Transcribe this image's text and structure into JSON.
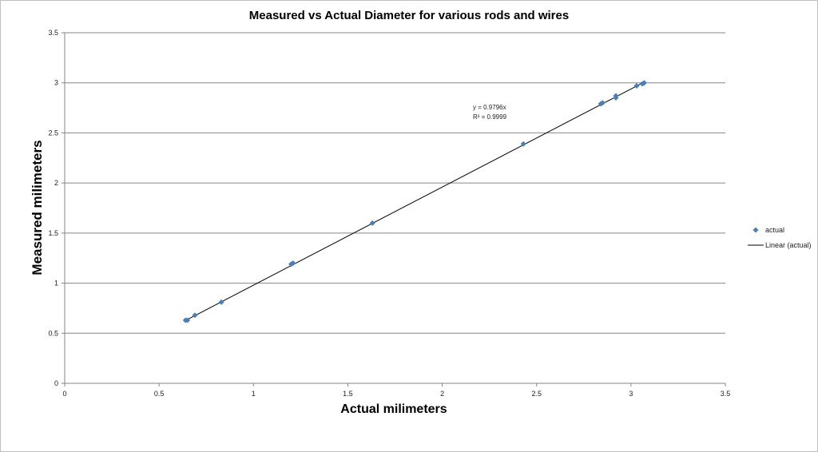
{
  "chart_data": {
    "type": "scatter",
    "title": "Measured vs Actual Diameter for various rods and wires",
    "xlabel": "Actual milimeters",
    "ylabel": "Measured milimeters",
    "xlim": [
      0,
      3.5
    ],
    "ylim": [
      0,
      3.5
    ],
    "xticks": [
      "0",
      "0.5",
      "1",
      "1.5",
      "2",
      "2.5",
      "3",
      "3.5"
    ],
    "yticks": [
      "0",
      "0.5",
      "1",
      "1.5",
      "2",
      "2.5",
      "3",
      "3.5"
    ],
    "grid": "horizontal",
    "legend_position": "right",
    "series": [
      {
        "name": "actual",
        "marker": "diamond",
        "color": "#4a7ebb",
        "x": [
          0.64,
          0.65,
          0.69,
          0.83,
          1.2,
          1.21,
          1.63,
          2.43,
          2.84,
          2.85,
          2.92,
          2.92,
          3.03,
          3.06,
          3.07
        ],
        "y": [
          0.63,
          0.63,
          0.68,
          0.81,
          1.19,
          1.2,
          1.6,
          2.39,
          2.79,
          2.8,
          2.85,
          2.87,
          2.97,
          2.99,
          3.0
        ]
      }
    ],
    "trendline": {
      "name": "Linear (actual)",
      "slope": 0.9796,
      "x_range": [
        0.64,
        3.07
      ],
      "color": "#000000",
      "equation": "y = 0.9796x",
      "r2_label": "R² = 0.9999"
    }
  }
}
